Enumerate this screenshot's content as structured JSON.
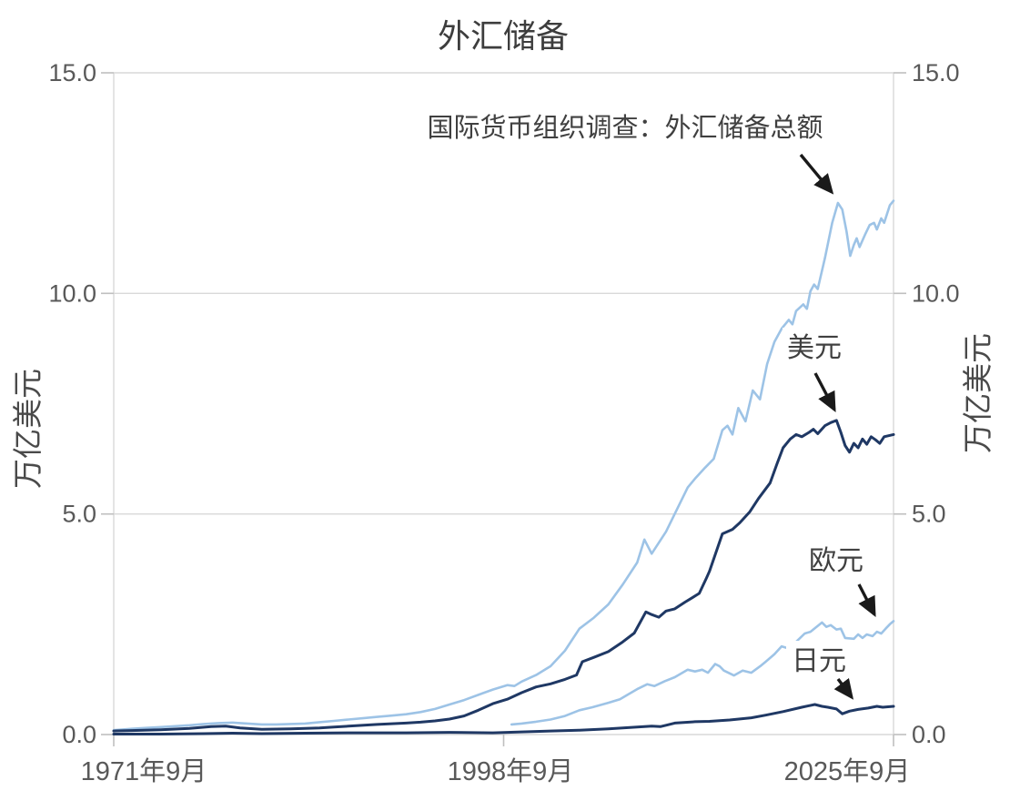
{
  "title": "外汇储备",
  "axes": {
    "y_left_label": "万亿美元",
    "y_right_label": "万亿美元",
    "y_ticks": [
      "15.0",
      "10.0",
      "5.0",
      "0.0"
    ],
    "x_ticks": [
      "1971年9月",
      "1998年9月",
      "2025年9月"
    ]
  },
  "annotations": {
    "total_label": "国际货币组织调查：外汇储备总额",
    "usd_label": "美元",
    "eur_label": "欧元",
    "jpy_label": "日元"
  },
  "colors": {
    "light_blue": "#9dc3e6",
    "navy": "#1f3864",
    "grid": "#d9d9d9",
    "tick_text": "#595959",
    "label_text": "#404040",
    "arrow": "#1a1a1a"
  },
  "chart_data": {
    "type": "line",
    "title": "外汇储备",
    "annotation": "国际货币组织调查：外汇储备总额",
    "xlabel": "",
    "ylabel_left": "万亿美元",
    "ylabel_right": "万亿美元",
    "ylim": [
      0,
      15
    ],
    "y_tick_values": [
      0.0,
      5.0,
      10.0,
      15.0
    ],
    "x_tick_labels": [
      "1971年9月",
      "1998年9月",
      "2025年9月"
    ],
    "x_range_years": [
      1971.75,
      2025.75
    ],
    "grid": "horizontal-only",
    "legend_position": "inline-arrow-labels",
    "units": "trillions of USD",
    "series": [
      {
        "name": "国际货币组织调查：外汇储备总额",
        "color": "#9dc3e6",
        "stroke_width": 2.6,
        "x": [
          1971.75,
          1973,
          1974,
          1975,
          1976,
          1977,
          1978,
          1979,
          1980,
          1981,
          1982,
          1983,
          1984,
          1985,
          1986,
          1987,
          1988,
          1989,
          1990,
          1991,
          1992,
          1993,
          1994,
          1995,
          1996,
          1997,
          1998,
          1999,
          1999.5,
          2000,
          2001,
          2002,
          2003,
          2004,
          2005,
          2006,
          2007,
          2008,
          2008.5,
          2009,
          2009.5,
          2010,
          2010.75,
          2011.5,
          2012,
          2012.7,
          2013.3,
          2013.9,
          2014.25,
          2014.6,
          2015,
          2015.5,
          2016,
          2016.5,
          2017,
          2017.5,
          2018,
          2018.5,
          2018.75,
          2019,
          2019.5,
          2019.75,
          2020,
          2020.25,
          2020.5,
          2021,
          2021.5,
          2021.9,
          2022.2,
          2022.5,
          2022.75,
          2023,
          2023.2,
          2023.4,
          2023.8,
          2024.1,
          2024.4,
          2024.6,
          2024.9,
          2025.1,
          2025.5,
          2025.75
        ],
        "values": [
          0.1,
          0.13,
          0.15,
          0.17,
          0.19,
          0.21,
          0.24,
          0.26,
          0.27,
          0.25,
          0.23,
          0.23,
          0.24,
          0.25,
          0.28,
          0.31,
          0.34,
          0.37,
          0.4,
          0.43,
          0.46,
          0.51,
          0.58,
          0.68,
          0.78,
          0.9,
          1.02,
          1.12,
          1.1,
          1.2,
          1.35,
          1.55,
          1.9,
          2.4,
          2.65,
          2.95,
          3.4,
          3.9,
          4.42,
          4.1,
          4.35,
          4.6,
          5.1,
          5.6,
          5.8,
          6.05,
          6.25,
          6.9,
          7.0,
          6.8,
          7.4,
          7.1,
          7.8,
          7.6,
          8.4,
          8.9,
          9.2,
          9.4,
          9.3,
          9.6,
          9.75,
          9.65,
          10.05,
          10.2,
          10.1,
          10.8,
          11.6,
          12.05,
          11.9,
          11.4,
          10.85,
          11.1,
          11.25,
          11.05,
          11.35,
          11.55,
          11.6,
          11.45,
          11.7,
          11.6,
          12.0,
          12.1
        ]
      },
      {
        "name": "美元",
        "color": "#1f3864",
        "stroke_width": 3.0,
        "x": [
          1971.75,
          1973,
          1975,
          1977,
          1978.5,
          1979.5,
          1980.5,
          1982,
          1984,
          1986,
          1987,
          1988,
          1990,
          1992,
          1993,
          1994,
          1995,
          1996,
          1997,
          1998,
          1999,
          2000,
          2001,
          2002,
          2003,
          2003.8,
          2004.2,
          2005,
          2006,
          2007,
          2007.8,
          2008.6,
          2009,
          2009.5,
          2010,
          2010.6,
          2011.3,
          2011.8,
          2012.3,
          2012.8,
          2013,
          2013.9,
          2014.6,
          2015.1,
          2015.8,
          2016.4,
          2017.2,
          2017.7,
          2018.1,
          2018.6,
          2019,
          2019.4,
          2019.9,
          2020.2,
          2020.5,
          2021,
          2021.4,
          2021.8,
          2022.1,
          2022.4,
          2022.7,
          2023,
          2023.3,
          2023.6,
          2023.9,
          2024.2,
          2024.5,
          2024.8,
          2025.1,
          2025.75
        ],
        "values": [
          0.08,
          0.09,
          0.11,
          0.14,
          0.18,
          0.19,
          0.15,
          0.12,
          0.13,
          0.15,
          0.17,
          0.19,
          0.23,
          0.26,
          0.28,
          0.31,
          0.35,
          0.42,
          0.55,
          0.7,
          0.8,
          0.95,
          1.08,
          1.15,
          1.25,
          1.35,
          1.65,
          1.75,
          1.88,
          2.1,
          2.3,
          2.78,
          2.72,
          2.66,
          2.8,
          2.85,
          3.0,
          3.1,
          3.2,
          3.55,
          3.7,
          4.55,
          4.65,
          4.8,
          5.05,
          5.35,
          5.7,
          6.15,
          6.5,
          6.7,
          6.8,
          6.75,
          6.85,
          6.92,
          6.82,
          7.0,
          7.07,
          7.12,
          6.85,
          6.55,
          6.4,
          6.6,
          6.5,
          6.7,
          6.58,
          6.75,
          6.68,
          6.6,
          6.75,
          6.8
        ]
      },
      {
        "name": "欧元",
        "color": "#9dc3e6",
        "stroke_width": 2.6,
        "x": [
          1999.3,
          2000,
          2001,
          2002,
          2003,
          2004,
          2004.9,
          2006,
          2006.8,
          2008,
          2008.7,
          2009.2,
          2009.9,
          2010.6,
          2011.5,
          2012,
          2012.5,
          2012.9,
          2013.4,
          2013.7,
          2014,
          2014.7,
          2015.3,
          2015.9,
          2016.6,
          2016.9,
          2017.5,
          2018,
          2018.5,
          2019,
          2019.6,
          2020,
          2020.8,
          2021.1,
          2021.4,
          2021.8,
          2022.1,
          2022.4,
          2023,
          2023.3,
          2023.6,
          2023.9,
          2024.3,
          2024.6,
          2024.9,
          2025.2,
          2025.5,
          2025.75
        ],
        "values": [
          0.23,
          0.25,
          0.29,
          0.34,
          0.42,
          0.55,
          0.62,
          0.72,
          0.8,
          1.03,
          1.14,
          1.1,
          1.21,
          1.3,
          1.47,
          1.43,
          1.47,
          1.4,
          1.6,
          1.55,
          1.45,
          1.34,
          1.45,
          1.4,
          1.57,
          1.65,
          1.82,
          2.0,
          1.95,
          2.1,
          2.29,
          2.33,
          2.54,
          2.44,
          2.48,
          2.38,
          2.4,
          2.19,
          2.17,
          2.27,
          2.19,
          2.27,
          2.23,
          2.33,
          2.29,
          2.4,
          2.5,
          2.57
        ]
      },
      {
        "name": "日元",
        "color": "#1f3864",
        "stroke_width": 3.0,
        "x": [
          1971.75,
          1975,
          1978,
          1980,
          1982,
          1985,
          1988,
          1990,
          1992,
          1995,
          1998,
          2000,
          2002,
          2004,
          2006,
          2008,
          2009,
          2009.6,
          2010,
          2010.6,
          2012,
          2013,
          2014.4,
          2015.9,
          2016.9,
          2018.1,
          2019.4,
          2020.3,
          2020.8,
          2021.2,
          2021.8,
          2022.2,
          2022.7,
          2023.3,
          2024,
          2024.6,
          2025,
          2025.75
        ],
        "values": [
          0.01,
          0.01,
          0.02,
          0.03,
          0.02,
          0.03,
          0.04,
          0.04,
          0.04,
          0.05,
          0.04,
          0.06,
          0.08,
          0.1,
          0.13,
          0.17,
          0.19,
          0.18,
          0.21,
          0.26,
          0.29,
          0.3,
          0.33,
          0.38,
          0.44,
          0.52,
          0.62,
          0.68,
          0.64,
          0.62,
          0.58,
          0.47,
          0.53,
          0.57,
          0.6,
          0.64,
          0.62,
          0.64
        ]
      }
    ]
  }
}
